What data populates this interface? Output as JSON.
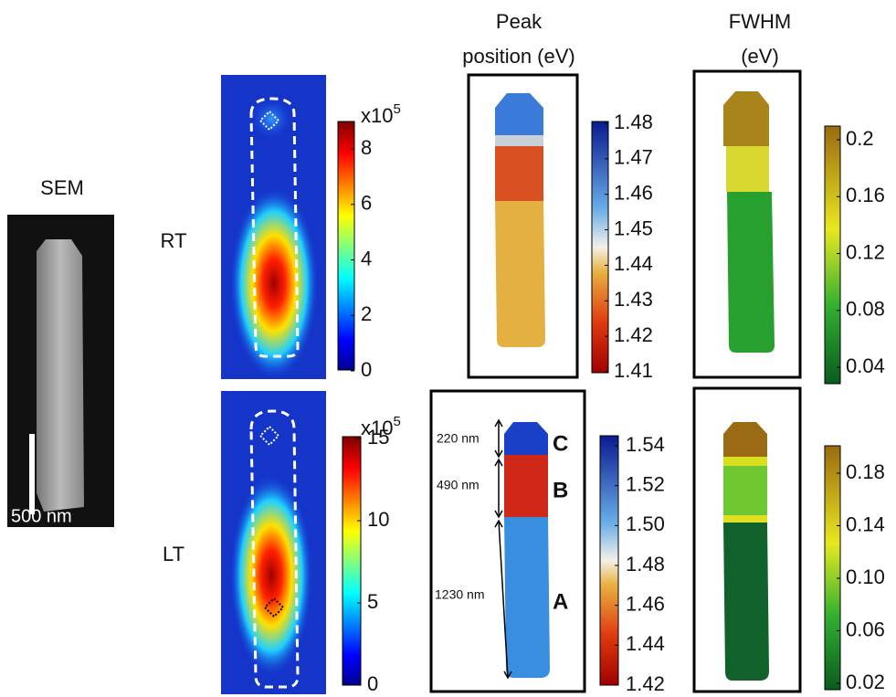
{
  "labels": {
    "sem": "SEM",
    "scale_bar": "500 nm",
    "rt": "RT",
    "lt": "LT"
  },
  "column_titles": {
    "peak": [
      "Peak",
      "position (eV)"
    ],
    "fwhm": [
      "FWHM",
      "(eV)"
    ]
  },
  "colorbars": {
    "rt_intensity": {
      "multiplier": "x10",
      "exponent": "5",
      "ticks": [
        "8",
        "6",
        "4",
        "2",
        "0"
      ]
    },
    "lt_intensity": {
      "multiplier": "x10",
      "exponent": "5",
      "ticks": [
        "15",
        "10",
        "5",
        "0"
      ]
    },
    "rt_peak": {
      "ticks": [
        "1.48",
        "1.47",
        "1.46",
        "1.45",
        "1.44",
        "1.43",
        "1.42",
        "1.41"
      ]
    },
    "lt_peak": {
      "ticks": [
        "1.54",
        "1.52",
        "1.50",
        "1.48",
        "1.46",
        "1.44",
        "1.42"
      ]
    },
    "rt_fwhm": {
      "ticks": [
        "0.2",
        "0.16",
        "0.12",
        "0.08",
        "0.04"
      ]
    },
    "lt_fwhm": {
      "ticks": [
        "0.18",
        "0.14",
        "0.10",
        "0.06",
        "0.02"
      ]
    }
  },
  "segments": [
    {
      "length": "220 nm",
      "label": "C"
    },
    {
      "length": "490 nm",
      "label": "B"
    },
    {
      "length": "1230 nm",
      "label": "A"
    }
  ]
}
